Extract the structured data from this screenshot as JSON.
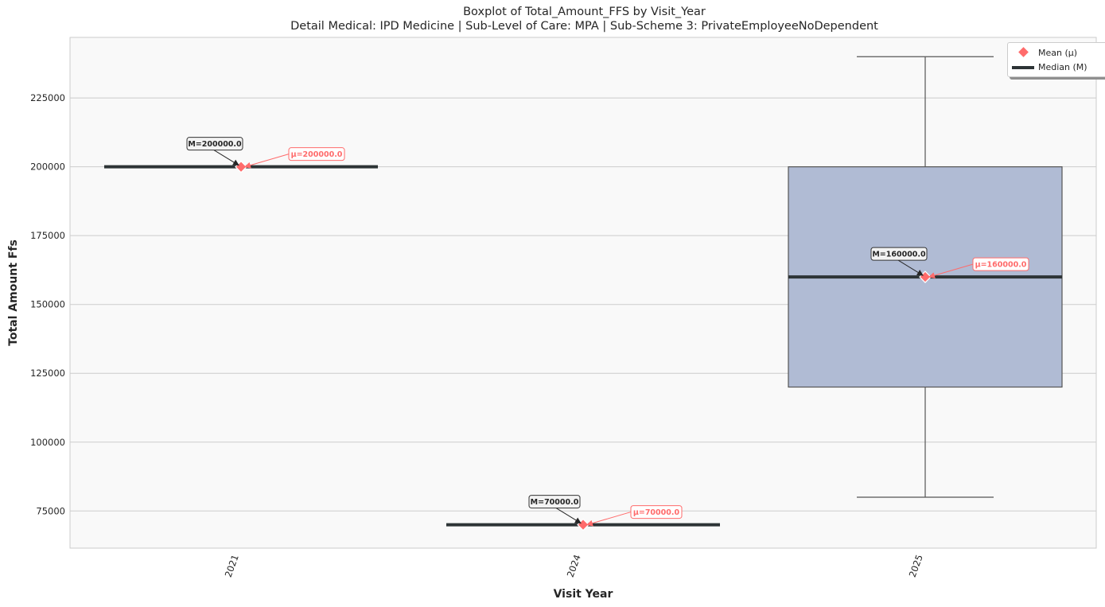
{
  "chart_data": {
    "type": "box",
    "title": "Boxplot of Total_Amount_FFS by Visit_Year",
    "subtitle": "Detail Medical: IPD Medicine | Sub-Level of Care: MPA | Sub-Scheme 3: PrivateEmployeeNoDependent",
    "xlabel": "Visit Year",
    "ylabel": "Total Amount Ffs",
    "categories": [
      "2021",
      "2024",
      "2025"
    ],
    "ylim": [
      61500,
      247000
    ],
    "yticks": [
      75000,
      100000,
      125000,
      150000,
      175000,
      200000,
      225000
    ],
    "ytick_labels": [
      "75000",
      "100000",
      "125000",
      "150000",
      "175000",
      "200000",
      "225000"
    ],
    "grid": "horizontal",
    "legend_position": "top-right",
    "legend": {
      "mean": "Mean (μ)",
      "median": "Median (M)"
    },
    "boxes": [
      {
        "category": "2021",
        "whisker_low": 200000,
        "q1": 200000,
        "median": 200000,
        "q3": 200000,
        "whisker_high": 200000,
        "mean": 200000,
        "median_label": "M=200000.0",
        "mean_label": "μ=200000.0"
      },
      {
        "category": "2024",
        "whisker_low": 70000,
        "q1": 70000,
        "median": 70000,
        "q3": 70000,
        "whisker_high": 70000,
        "mean": 70000,
        "median_label": "M=70000.0",
        "mean_label": "μ=70000.0"
      },
      {
        "category": "2025",
        "whisker_low": 80000,
        "q1": 120000,
        "median": 160000,
        "q3": 200000,
        "whisker_high": 240000,
        "mean": 160000,
        "median_label": "M=160000.0",
        "mean_label": "μ=160000.0"
      }
    ],
    "colors": {
      "box_fill": "#b0bbd4",
      "box_edge": "#555555",
      "median": "#2d3436",
      "mean": "#ff6b6b",
      "plot_bg": "#f9f9f9",
      "grid": "#cccccc"
    }
  }
}
